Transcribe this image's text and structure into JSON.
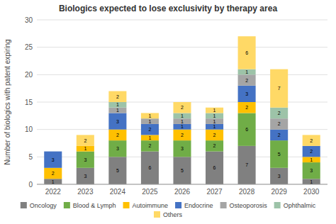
{
  "chart_data": {
    "type": "bar",
    "stacked": true,
    "title": "Biologics expected to lose exclusivity by therapy area",
    "ylabel": "Number of biologics with patent expiring",
    "categories": [
      "2022",
      "2023",
      "2024",
      "2025",
      "2026",
      "2027",
      "2028",
      "2029",
      "2030"
    ],
    "series": [
      {
        "name": "Oncology",
        "color": "#808080",
        "values": [
          1,
          3,
          5,
          6,
          5,
          6,
          7,
          3,
          1
        ]
      },
      {
        "name": "Blood & Lymph",
        "color": "#70ad47",
        "values": [
          0,
          3,
          3,
          2,
          3,
          2,
          6,
          5,
          3
        ]
      },
      {
        "name": "Autoimmune",
        "color": "#ffc000",
        "values": [
          2,
          1,
          2,
          1,
          2,
          2,
          2,
          0,
          1
        ]
      },
      {
        "name": "Endocrine",
        "color": "#4472c4",
        "values": [
          3,
          0,
          3,
          2,
          1,
          1,
          3,
          2,
          2
        ]
      },
      {
        "name": "Osteoporosis",
        "color": "#a5a5a5",
        "values": [
          0,
          0,
          1,
          1,
          1,
          1,
          2,
          2,
          0
        ]
      },
      {
        "name": "Ophthalmic",
        "color": "#9dc3a8",
        "values": [
          0,
          0,
          1,
          0,
          1,
          1,
          1,
          2,
          0
        ]
      },
      {
        "name": "Others",
        "color": "#ffd966",
        "values": [
          0,
          2,
          2,
          1,
          2,
          1,
          6,
          7,
          2
        ]
      }
    ],
    "ylim": [
      0,
      30
    ],
    "yticks": [
      0,
      5,
      10,
      15,
      20,
      25,
      30
    ],
    "grid": true,
    "legend": "bottom",
    "data_labels": true
  }
}
